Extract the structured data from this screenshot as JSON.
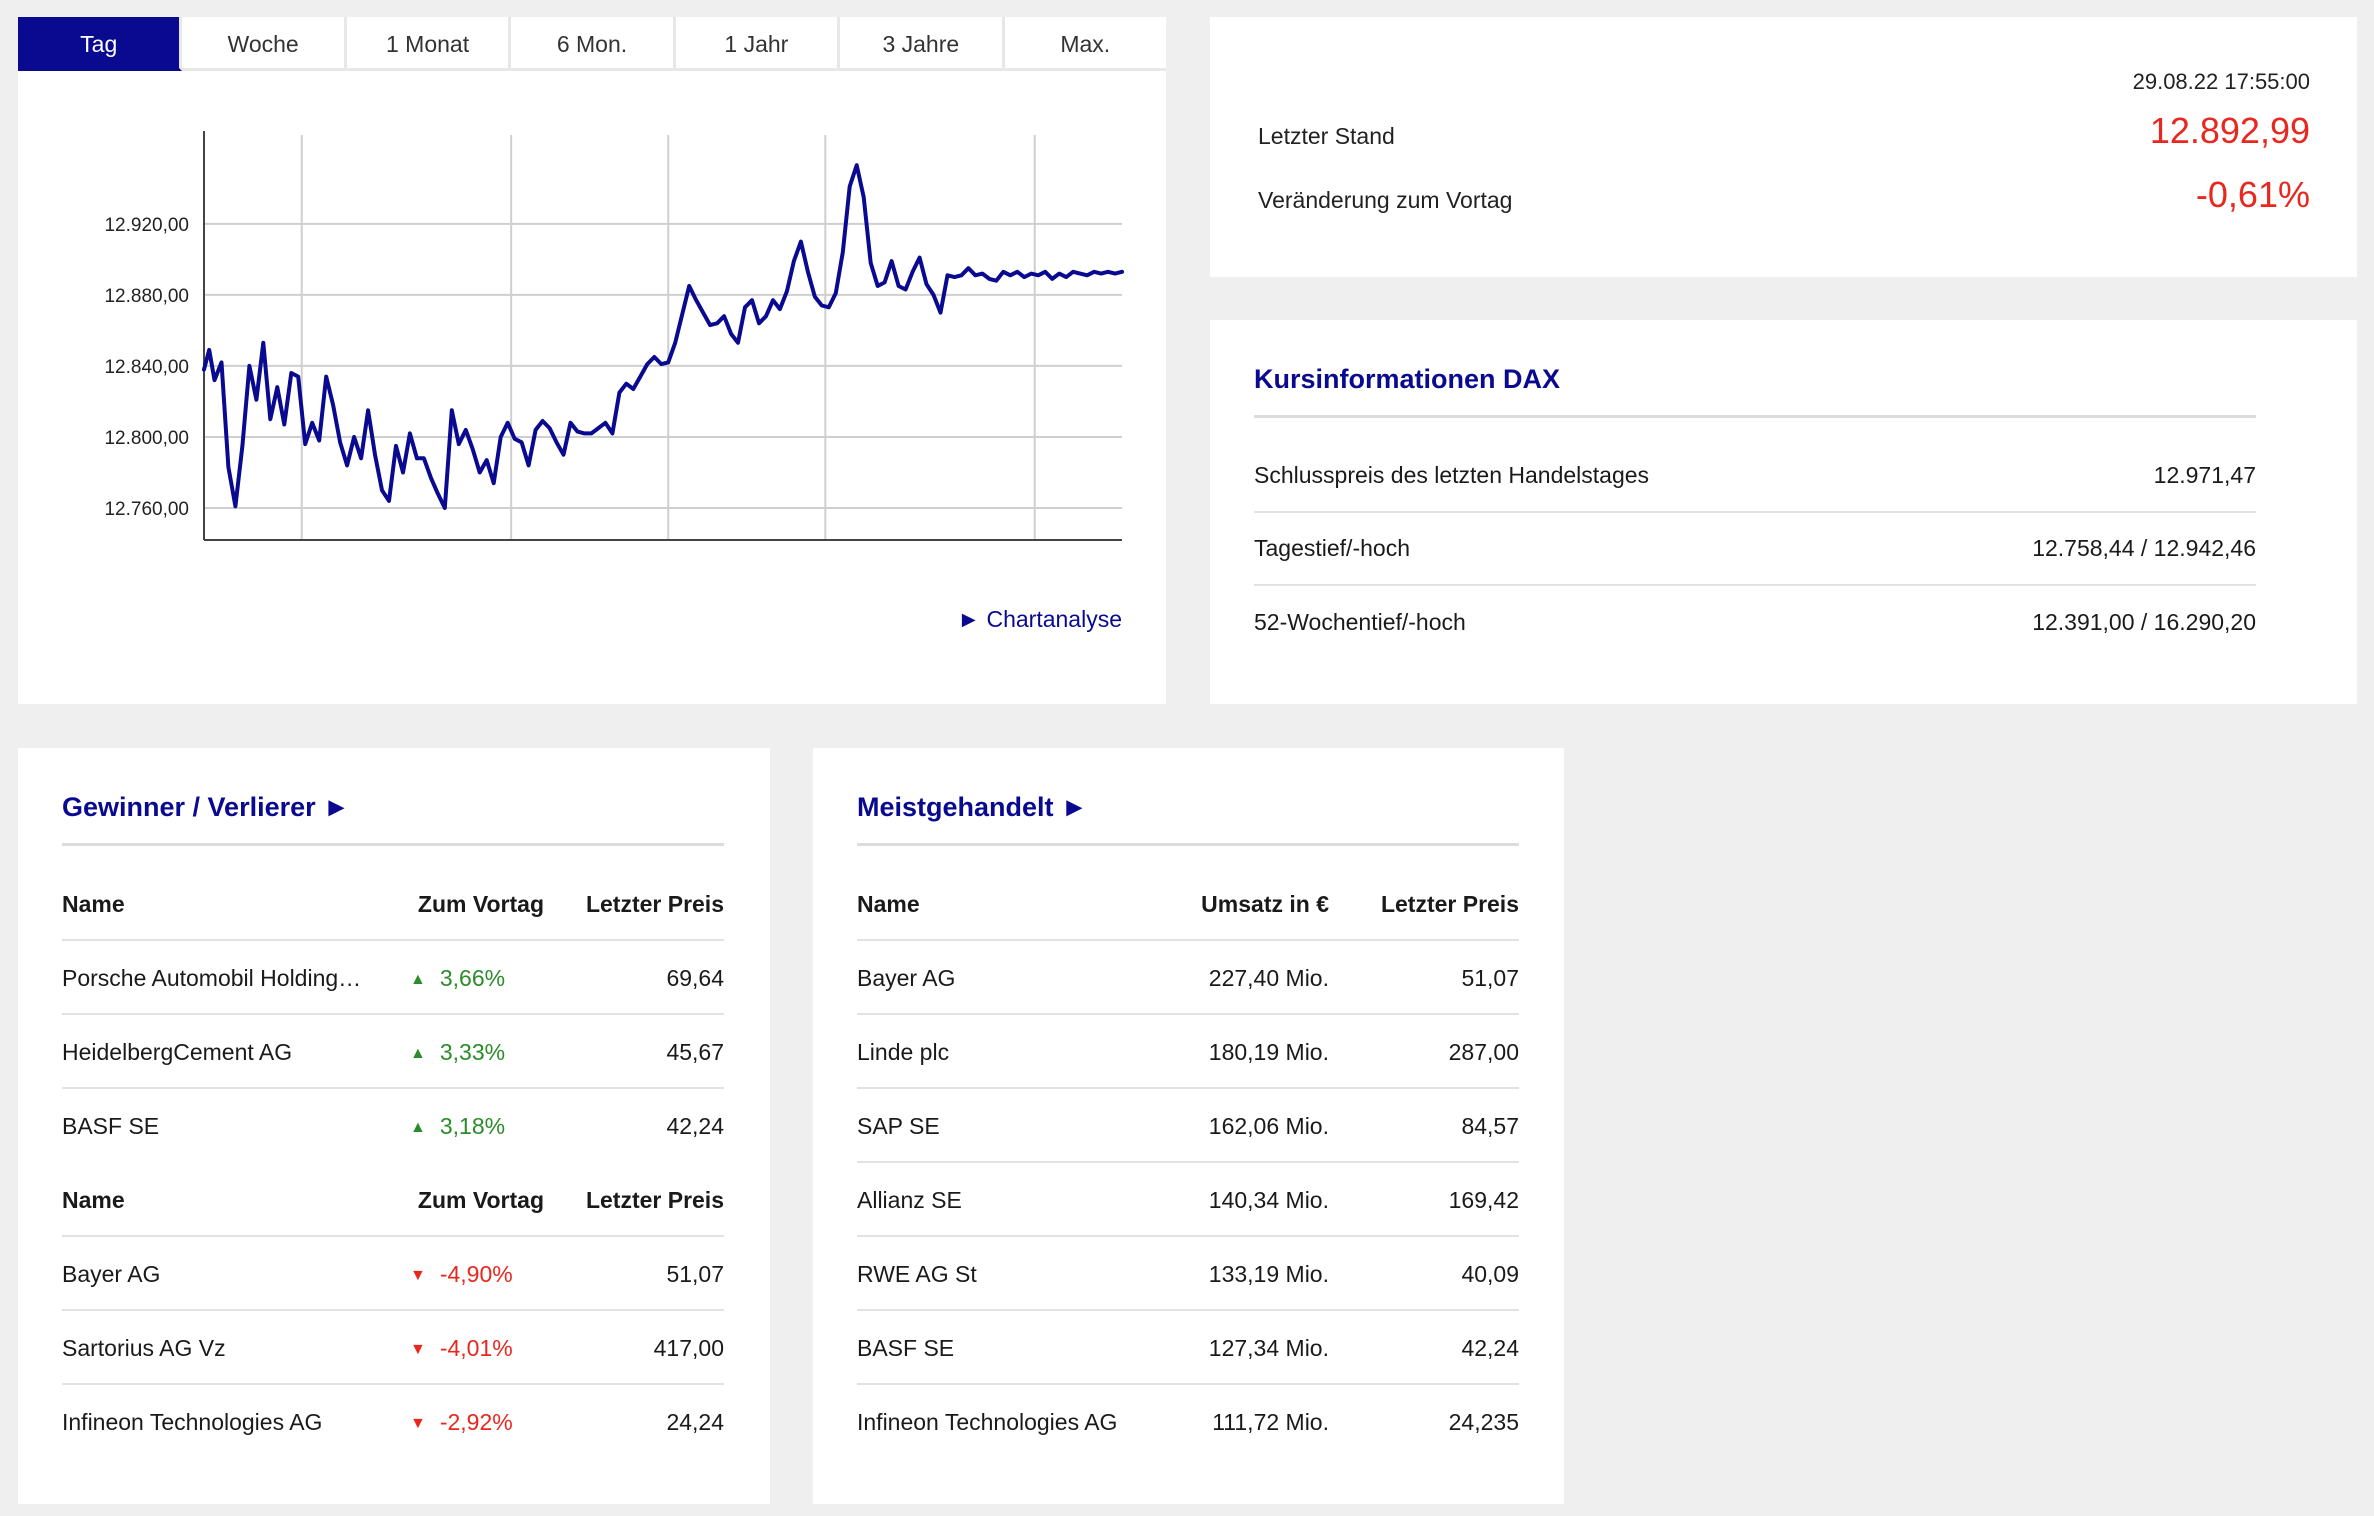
{
  "chart": {
    "tabs": [
      {
        "label": "Tag",
        "active": true
      },
      {
        "label": "Woche",
        "active": false
      },
      {
        "label": "1 Monat",
        "active": false
      },
      {
        "label": "6 Mon.",
        "active": false
      },
      {
        "label": "1 Jahr",
        "active": false
      },
      {
        "label": "3 Jahre",
        "active": false
      },
      {
        "label": "Max.",
        "active": false
      }
    ],
    "link_label": "► Chartanalyse"
  },
  "chart_data": {
    "type": "line",
    "x_unit": "time of day",
    "xlim": [
      "09:04",
      "17:50"
    ],
    "ylim": [
      12742,
      12970
    ],
    "y_ticks": [
      12760,
      12800,
      12840,
      12880,
      12920
    ],
    "y_tick_labels": [
      "12.760,00",
      "12.800,00",
      "12.840,00",
      "12.880,00",
      "12.920,00"
    ],
    "x_ticks": [
      "10:00",
      "12:00",
      "13:30",
      "15:00",
      "17:00"
    ],
    "x_tick_bold": [
      true,
      true,
      false,
      true,
      true
    ],
    "grid": true,
    "line_color": "#0a0a91",
    "series": [
      {
        "x": [
          "09:04",
          "09:07",
          "09:10",
          "09:14",
          "09:18",
          "09:22",
          "09:26",
          "09:30",
          "09:34",
          "09:38",
          "09:42",
          "09:46",
          "09:50",
          "09:54",
          "09:58",
          "10:02",
          "10:06",
          "10:10",
          "10:14",
          "10:18",
          "10:22",
          "10:26",
          "10:30",
          "10:34",
          "10:38",
          "10:42",
          "10:46",
          "10:50",
          "10:54",
          "10:58",
          "11:02",
          "11:06",
          "11:10",
          "11:14",
          "11:18",
          "11:22",
          "11:26",
          "11:30",
          "11:34",
          "11:38",
          "11:42",
          "11:46",
          "11:50",
          "11:54",
          "11:58",
          "12:02",
          "12:06",
          "12:10",
          "12:14",
          "12:18",
          "12:22",
          "12:26",
          "12:30",
          "12:34",
          "12:38",
          "12:42",
          "12:46",
          "12:50",
          "12:54",
          "12:58",
          "13:02",
          "13:06",
          "13:10",
          "13:14",
          "13:18",
          "13:22",
          "13:26",
          "13:30",
          "13:34",
          "13:38",
          "13:42",
          "13:46",
          "13:50",
          "13:54",
          "13:58",
          "14:02",
          "14:06",
          "14:10",
          "14:14",
          "14:18",
          "14:22",
          "14:26",
          "14:30",
          "14:34",
          "14:38",
          "14:42",
          "14:46",
          "14:50",
          "14:54",
          "14:58",
          "15:02",
          "15:06",
          "15:10",
          "15:14",
          "15:18",
          "15:22",
          "15:26",
          "15:30",
          "15:34",
          "15:38",
          "15:42",
          "15:46",
          "15:50",
          "15:54",
          "15:58",
          "16:02",
          "16:06",
          "16:10",
          "16:14",
          "16:18",
          "16:22",
          "16:26",
          "16:30",
          "16:34",
          "16:38",
          "16:42",
          "16:46",
          "16:50",
          "16:54",
          "16:58",
          "17:02",
          "17:06",
          "17:10",
          "17:14",
          "17:18",
          "17:22",
          "17:26",
          "17:30",
          "17:34",
          "17:38",
          "17:42",
          "17:46",
          "17:50"
        ],
        "y": [
          12838,
          12849,
          12832,
          12842,
          12783,
          12761,
          12795,
          12840,
          12821,
          12853,
          12810,
          12828,
          12807,
          12836,
          12834,
          12796,
          12808,
          12798,
          12834,
          12818,
          12797,
          12784,
          12800,
          12788,
          12815,
          12790,
          12770,
          12764,
          12795,
          12780,
          12802,
          12788,
          12788,
          12777,
          12768,
          12760,
          12815,
          12796,
          12804,
          12793,
          12780,
          12787,
          12774,
          12800,
          12808,
          12799,
          12797,
          12784,
          12804,
          12809,
          12805,
          12797,
          12790,
          12808,
          12803,
          12802,
          12802,
          12805,
          12808,
          12802,
          12825,
          12830,
          12827,
          12834,
          12841,
          12845,
          12841,
          12842,
          12853,
          12869,
          12885,
          12877,
          12870,
          12863,
          12864,
          12868,
          12858,
          12853,
          12873,
          12877,
          12864,
          12868,
          12877,
          12872,
          12882,
          12899,
          12910,
          12893,
          12879,
          12874,
          12873,
          12881,
          12904,
          12941,
          12953,
          12935,
          12898,
          12885,
          12887,
          12899,
          12885,
          12883,
          12893,
          12901,
          12886,
          12880,
          12870,
          12891,
          12890,
          12891,
          12895,
          12891,
          12892,
          12889,
          12888,
          12893,
          12891,
          12893,
          12890,
          12892,
          12891,
          12893,
          12889,
          12892,
          12890,
          12893,
          12892,
          12891,
          12893,
          12892,
          12893,
          12892,
          12893
        ]
      }
    ]
  },
  "quote": {
    "datetime": "29.08.22 17:55:00",
    "last_label": "Letzter Stand",
    "last_value": "12.892,99",
    "change_label": "Veränderung zum Vortag",
    "change_value": "-0,61%",
    "value_color": "#e8281e"
  },
  "info": {
    "title": "Kursinformationen DAX",
    "rows": [
      {
        "label": "Schlusspreis des letzten Handelstages",
        "value": "12.971,47"
      },
      {
        "label": "Tagestief/-hoch",
        "value": "12.758,44 / 12.942,46"
      },
      {
        "label": "52-Wochentief/-hoch",
        "value": "12.391,00 / 16.290,20"
      }
    ]
  },
  "winners": {
    "title": "Gewinner / Verlierer ►",
    "header": {
      "name": "Name",
      "change": "Zum Vortag",
      "price": "Letzter Preis"
    },
    "gainers": [
      {
        "name": "Porsche Automobil Holding…",
        "change": "3,66%",
        "price": "69,64"
      },
      {
        "name": "HeidelbergCement AG",
        "change": "3,33%",
        "price": "45,67"
      },
      {
        "name": "BASF SE",
        "change": "3,18%",
        "price": "42,24"
      }
    ],
    "losers": [
      {
        "name": "Bayer AG",
        "change": "-4,90%",
        "price": "51,07"
      },
      {
        "name": "Sartorius AG Vz",
        "change": "-4,01%",
        "price": "417,00"
      },
      {
        "name": "Infineon Technologies AG",
        "change": "-2,92%",
        "price": "24,24"
      }
    ],
    "up_arrow": "▲",
    "down_arrow": "▼",
    "up_color": "#2a8c2a",
    "down_color": "#e8281e"
  },
  "traded": {
    "title": "Meistgehandelt ►",
    "header": {
      "name": "Name",
      "volume": "Umsatz in €",
      "price": "Letzter Preis"
    },
    "rows": [
      {
        "name": "Bayer AG",
        "volume": "227,40 Mio.",
        "price": "51,07"
      },
      {
        "name": "Linde plc",
        "volume": "180,19 Mio.",
        "price": "287,00"
      },
      {
        "name": "SAP SE",
        "volume": "162,06 Mio.",
        "price": "84,57"
      },
      {
        "name": "Allianz SE",
        "volume": "140,34 Mio.",
        "price": "169,42"
      },
      {
        "name": "RWE AG St",
        "volume": "133,19 Mio.",
        "price": "40,09"
      },
      {
        "name": "BASF SE",
        "volume": "127,34 Mio.",
        "price": "42,24"
      },
      {
        "name": "Infineon Technologies AG",
        "volume": "111,72 Mio.",
        "price": "24,235"
      }
    ]
  },
  "brand": {
    "accent": "#0a0a91"
  }
}
